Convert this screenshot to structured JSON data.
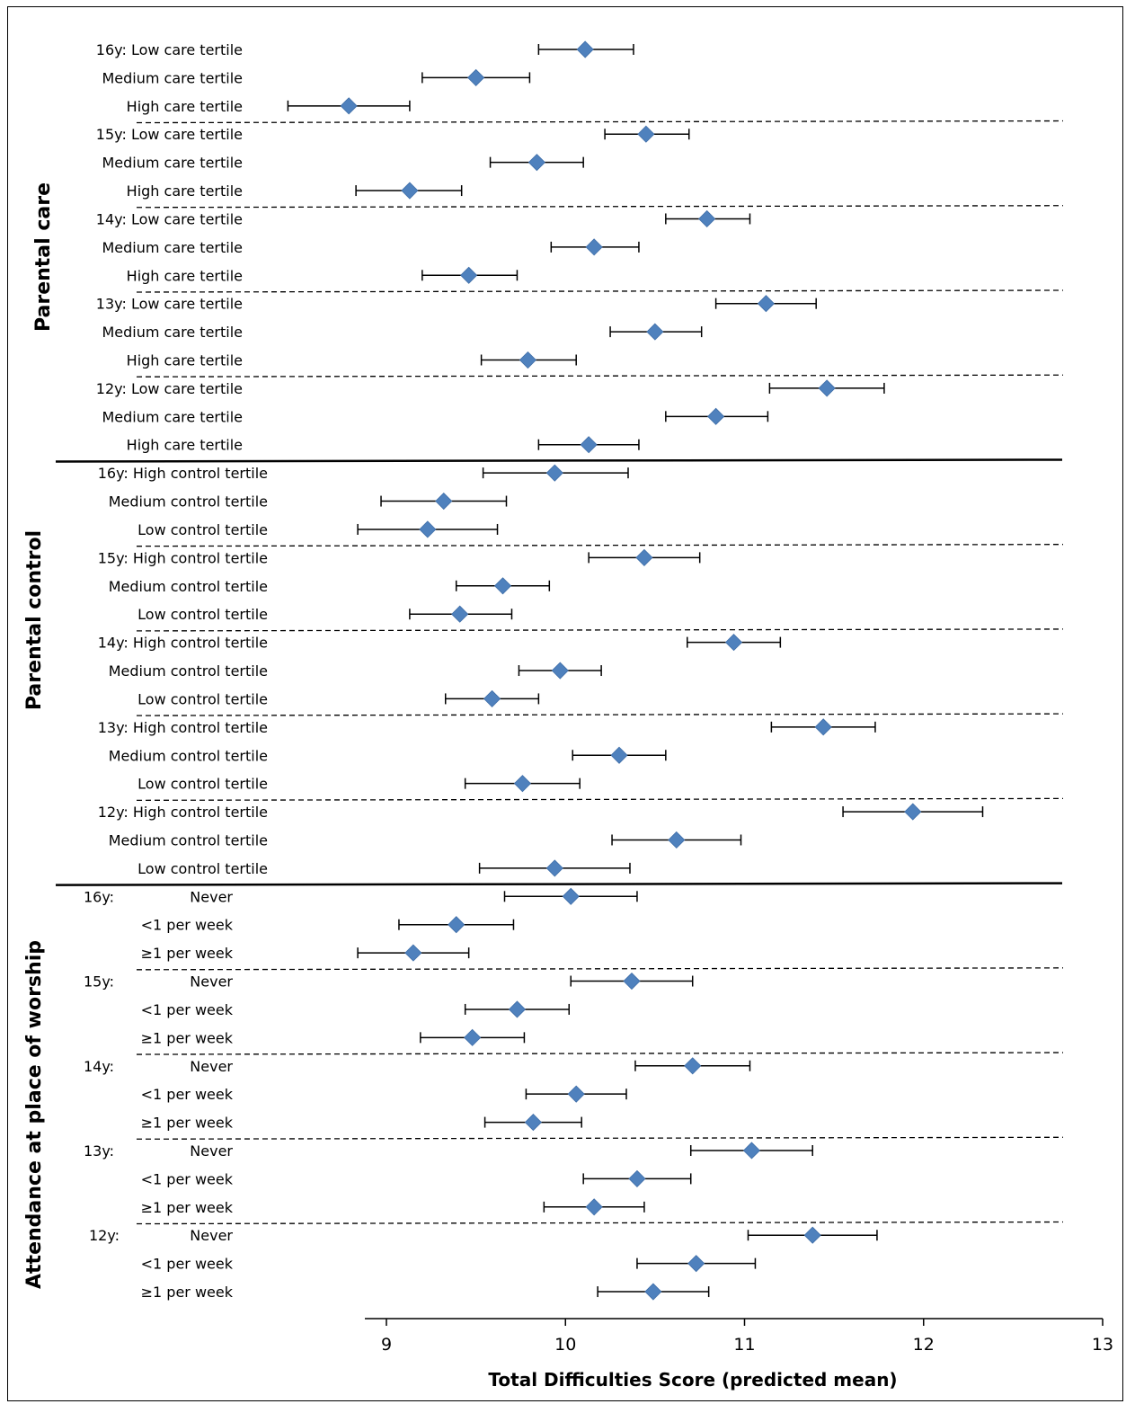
{
  "chart_data": {
    "type": "forest",
    "xlabel": "Total Difficulties Score (predicted mean)",
    "xlim": [
      8.9,
      13
    ],
    "xticks": [
      9,
      10,
      11,
      12,
      13
    ],
    "marker_color": "#4F81BD",
    "groups": [
      {
        "name": "Parental care",
        "rows": [
          {
            "label": "16y: Low care tertile",
            "mean": 10.11,
            "lo": 9.85,
            "hi": 10.38
          },
          {
            "label": "Medium care tertile",
            "mean": 9.5,
            "lo": 9.2,
            "hi": 9.8
          },
          {
            "label": "High care tertile",
            "mean": 8.79,
            "lo": 8.45,
            "hi": 9.13
          },
          {
            "label": "15y: Low care tertile",
            "mean": 10.45,
            "lo": 10.22,
            "hi": 10.69
          },
          {
            "label": "Medium care tertile",
            "mean": 9.84,
            "lo": 9.58,
            "hi": 10.1
          },
          {
            "label": "High care tertile",
            "mean": 9.13,
            "lo": 8.83,
            "hi": 9.42
          },
          {
            "label": "14y: Low care tertile",
            "mean": 10.79,
            "lo": 10.56,
            "hi": 11.03
          },
          {
            "label": "Medium care tertile",
            "mean": 10.16,
            "lo": 9.92,
            "hi": 10.41
          },
          {
            "label": "High care tertile",
            "mean": 9.46,
            "lo": 9.2,
            "hi": 9.73
          },
          {
            "label": "13y: Low care tertile",
            "mean": 11.12,
            "lo": 10.84,
            "hi": 11.4
          },
          {
            "label": "Medium care tertile",
            "mean": 10.5,
            "lo": 10.25,
            "hi": 10.76
          },
          {
            "label": "High care tertile",
            "mean": 9.79,
            "lo": 9.53,
            "hi": 10.06
          },
          {
            "label": "12y: Low care tertile",
            "mean": 11.46,
            "lo": 11.14,
            "hi": 11.78
          },
          {
            "label": "Medium care tertile",
            "mean": 10.84,
            "lo": 10.56,
            "hi": 11.13
          },
          {
            "label": "High care tertile",
            "mean": 10.13,
            "lo": 9.85,
            "hi": 10.41
          }
        ]
      },
      {
        "name": "Parental control",
        "rows": [
          {
            "label": "16y: High control tertile",
            "mean": 9.94,
            "lo": 9.54,
            "hi": 10.35
          },
          {
            "label": "Medium control tertile",
            "mean": 9.32,
            "lo": 8.97,
            "hi": 9.67
          },
          {
            "label": "Low control tertile",
            "mean": 9.23,
            "lo": 8.84,
            "hi": 9.62
          },
          {
            "label": "15y: High control tertile",
            "mean": 10.44,
            "lo": 10.13,
            "hi": 10.75
          },
          {
            "label": "Medium control tertile",
            "mean": 9.65,
            "lo": 9.39,
            "hi": 9.91
          },
          {
            "label": "Low control tertile",
            "mean": 9.41,
            "lo": 9.13,
            "hi": 9.7
          },
          {
            "label": "14y: High control tertile",
            "mean": 10.94,
            "lo": 10.68,
            "hi": 11.2
          },
          {
            "label": "Medium control tertile",
            "mean": 9.97,
            "lo": 9.74,
            "hi": 10.2
          },
          {
            "label": "Low control tertile",
            "mean": 9.59,
            "lo": 9.33,
            "hi": 9.85
          },
          {
            "label": "13y: High control tertile",
            "mean": 11.44,
            "lo": 11.15,
            "hi": 11.73
          },
          {
            "label": "Medium control tertile",
            "mean": 10.3,
            "lo": 10.04,
            "hi": 10.56
          },
          {
            "label": "Low control tertile",
            "mean": 9.76,
            "lo": 9.44,
            "hi": 10.08
          },
          {
            "label": "12y: High control tertile",
            "mean": 11.94,
            "lo": 11.55,
            "hi": 12.33
          },
          {
            "label": "Medium control tertile",
            "mean": 10.62,
            "lo": 10.26,
            "hi": 10.98
          },
          {
            "label": "Low control tertile",
            "mean": 9.94,
            "lo": 9.52,
            "hi": 10.36
          }
        ]
      },
      {
        "name": "Attendance at place of worship",
        "rows": [
          {
            "prefix": "16y:",
            "label": "Never",
            "mean": 10.03,
            "lo": 9.66,
            "hi": 10.4
          },
          {
            "label": "<1 per week",
            "mean": 9.39,
            "lo": 9.07,
            "hi": 9.71
          },
          {
            "label": "≥1 per week",
            "mean": 9.15,
            "lo": 8.84,
            "hi": 9.46
          },
          {
            "prefix": "15y:",
            "label": "Never",
            "mean": 10.37,
            "lo": 10.03,
            "hi": 10.71
          },
          {
            "label": "<1 per week",
            "mean": 9.73,
            "lo": 9.44,
            "hi": 10.02
          },
          {
            "label": "≥1 per week",
            "mean": 9.48,
            "lo": 9.19,
            "hi": 9.77
          },
          {
            "prefix": "14y:",
            "label": "Never",
            "mean": 10.71,
            "lo": 10.39,
            "hi": 11.03
          },
          {
            "label": "<1 per week",
            "mean": 10.06,
            "lo": 9.78,
            "hi": 10.34
          },
          {
            "label": "≥1 per week",
            "mean": 9.82,
            "lo": 9.55,
            "hi": 10.09
          },
          {
            "prefix": "13y:",
            "label": "Never",
            "mean": 11.04,
            "lo": 10.7,
            "hi": 11.38
          },
          {
            "label": "<1 per week",
            "mean": 10.4,
            "lo": 10.1,
            "hi": 10.7
          },
          {
            "label": "≥1 per week",
            "mean": 10.16,
            "lo": 9.88,
            "hi": 10.44
          },
          {
            "prefix": "12y:",
            "label": "Never",
            "mean": 11.38,
            "lo": 11.02,
            "hi": 11.74
          },
          {
            "label": "<1 per week",
            "mean": 10.73,
            "lo": 10.4,
            "hi": 11.06
          },
          {
            "label": "≥1 per week",
            "mean": 10.49,
            "lo": 10.18,
            "hi": 10.8
          }
        ]
      }
    ]
  }
}
